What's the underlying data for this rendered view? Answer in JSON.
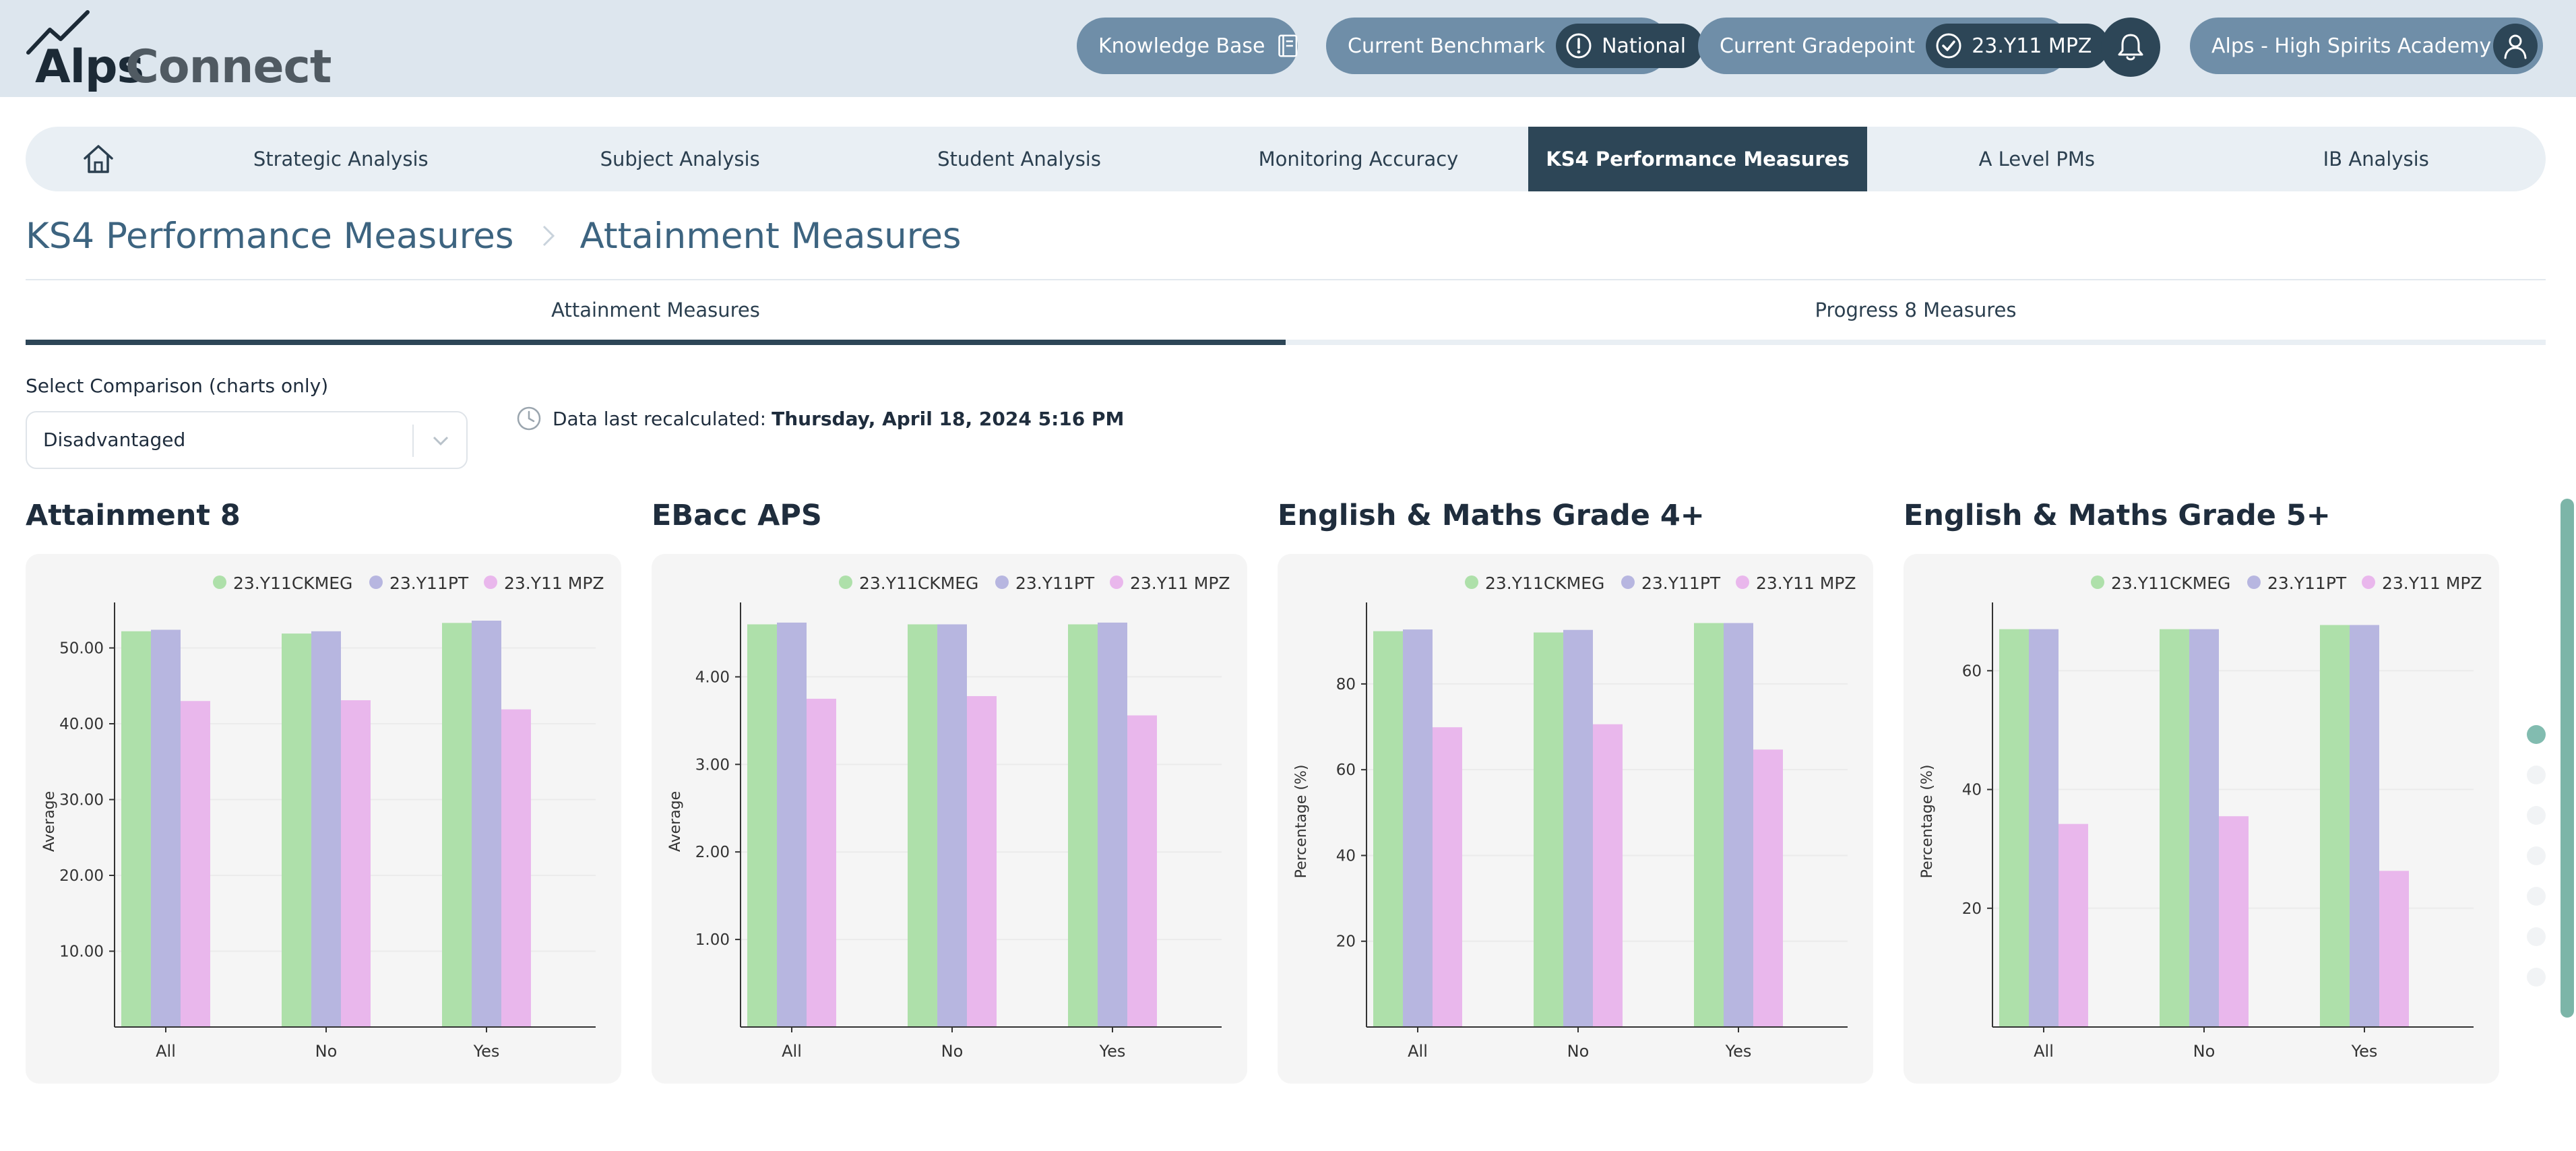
{
  "header": {
    "logo_primary": "Alps",
    "logo_secondary": "Connect",
    "knowledge_base_label": "Knowledge Base",
    "benchmark_label": "Current Benchmark",
    "benchmark_value": "National",
    "gradepoint_label": "Current Gradepoint",
    "gradepoint_value": "23.Y11 MPZ",
    "school_label": "Alps - High Spirits Academy (E)"
  },
  "nav": {
    "tabs": [
      {
        "label": "Strategic Analysis"
      },
      {
        "label": "Subject Analysis"
      },
      {
        "label": "Student Analysis"
      },
      {
        "label": "Monitoring Accuracy"
      },
      {
        "label": "KS4 Performance Measures"
      },
      {
        "label": "A Level PMs"
      },
      {
        "label": "IB Analysis"
      }
    ],
    "active_index": 4
  },
  "breadcrumb": {
    "parent": "KS4 Performance Measures",
    "current": "Attainment Measures"
  },
  "subtabs": {
    "items": [
      {
        "label": "Attainment Measures"
      },
      {
        "label": "Progress 8 Measures"
      }
    ],
    "active_index": 0
  },
  "controls": {
    "comparison_label": "Select Comparison (charts only)",
    "comparison_value": "Disadvantaged",
    "recalc_prefix": "Data last recalculated:",
    "recalc_value": "Thursday, April 18, 2024 5:16 PM"
  },
  "colors": {
    "series": [
      "#aee0aa",
      "#b7b6e0",
      "#e9b7ec"
    ],
    "header_bg": "#dde6ee",
    "nav_active": "#2d4657",
    "breadcrumb": "#3d6480"
  },
  "chart_data": [
    {
      "type": "bar",
      "title": "Attainment 8",
      "ylabel": "Average",
      "categories": [
        "All",
        "No",
        "Yes"
      ],
      "ylim": [
        0,
        56
      ],
      "yticks": [
        10,
        20,
        30,
        40,
        50
      ],
      "tick_format": "2dp",
      "legend_position": "top",
      "series": [
        {
          "name": "23.Y11CKMEG",
          "values": [
            52.2,
            51.9,
            53.3
          ]
        },
        {
          "name": "23.Y11PT",
          "values": [
            52.4,
            52.2,
            53.6
          ]
        },
        {
          "name": "23.Y11 MPZ",
          "values": [
            43.0,
            43.1,
            41.9
          ]
        }
      ]
    },
    {
      "type": "bar",
      "title": "EBacc APS",
      "ylabel": "Average",
      "categories": [
        "All",
        "No",
        "Yes"
      ],
      "ylim": [
        0,
        4.85
      ],
      "yticks": [
        1,
        2,
        3,
        4
      ],
      "tick_format": "2dp",
      "legend_position": "top",
      "series": [
        {
          "name": "23.Y11CKMEG",
          "values": [
            4.6,
            4.6,
            4.6
          ]
        },
        {
          "name": "23.Y11PT",
          "values": [
            4.62,
            4.6,
            4.62
          ]
        },
        {
          "name": "23.Y11 MPZ",
          "values": [
            3.75,
            3.78,
            3.56
          ]
        }
      ]
    },
    {
      "type": "bar",
      "title": "English & Maths Grade 4+",
      "ylabel": "Percentage (%)",
      "categories": [
        "All",
        "No",
        "Yes"
      ],
      "ylim": [
        0,
        99
      ],
      "yticks": [
        20,
        40,
        60,
        80
      ],
      "tick_format": "int",
      "legend_position": "top",
      "series": [
        {
          "name": "23.Y11CKMEG",
          "values": [
            92.3,
            92.0,
            94.2
          ]
        },
        {
          "name": "23.Y11PT",
          "values": [
            92.7,
            92.6,
            94.2
          ]
        },
        {
          "name": "23.Y11 MPZ",
          "values": [
            69.9,
            70.6,
            64.7
          ]
        }
      ]
    },
    {
      "type": "bar",
      "title": "English & Maths Grade 5+",
      "ylabel": "Percentage (%)",
      "categories": [
        "All",
        "No",
        "Yes"
      ],
      "ylim": [
        0,
        71.5
      ],
      "yticks": [
        20,
        40,
        60
      ],
      "tick_format": "int",
      "legend_position": "top",
      "series": [
        {
          "name": "23.Y11CKMEG",
          "values": [
            67.0,
            67.0,
            67.7
          ]
        },
        {
          "name": "23.Y11PT",
          "values": [
            67.0,
            67.0,
            67.7
          ]
        },
        {
          "name": "23.Y11 MPZ",
          "values": [
            34.2,
            35.5,
            26.3
          ]
        }
      ]
    }
  ]
}
